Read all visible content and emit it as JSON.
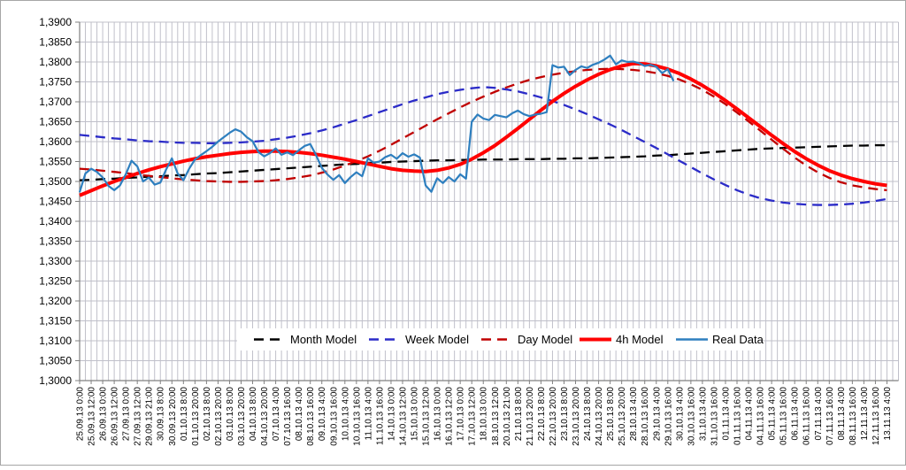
{
  "chart_data": {
    "type": "line",
    "title": "",
    "grid": true,
    "y_axis": {
      "min": 1.3,
      "max": 1.39,
      "step": 0.005,
      "tick_labels": [
        "1,3900",
        "1,3850",
        "1,3800",
        "1,3750",
        "1,3700",
        "1,3650",
        "1,3600",
        "1,3550",
        "1,3500",
        "1,3450",
        "1,3400",
        "1,3350",
        "1,3300",
        "1,3250",
        "1,3200",
        "1,3150",
        "1,3100",
        "1,3050",
        "1,3000"
      ]
    },
    "x_axis": {
      "labels": [
        "25.09.13 0:00",
        "25.09.13 12:00",
        "26.09.13 0:00",
        "26.09.13 12:00",
        "27.09.13 0:00",
        "27.09.13 12:00",
        "29.09.13 21:00",
        "30.09.13 8:00",
        "30.09.13 20:00",
        "01.10.13 8:00",
        "01.10.13 20:00",
        "02.10.13 8:00",
        "02.10.13 20:00",
        "03.10.13 8:00",
        "03.10.13 20:00",
        "04.10.13 8:00",
        "04.10.13 20:00",
        "07.10.13 4:00",
        "07.10.13 16:00",
        "08.10.13 4:00",
        "08.10.13 16:00",
        "09.10.13 4:00",
        "09.10.13 16:00",
        "10.10.13 4:00",
        "10.10.13 16:00",
        "11.10.13 4:00",
        "11.10.13 16:00",
        "14.10.13 0:00",
        "14.10.13 12:00",
        "15.10.13 0:00",
        "15.10.13 12:00",
        "16.10.13 0:00",
        "16.10.13 12:00",
        "17.10.13 0:00",
        "17.10.13 12:00",
        "18.10.13 0:00",
        "18.10.13 12:00",
        "20.10.13 21:00",
        "21.10.13 8:00",
        "21.10.13 20:00",
        "22.10.13 8:00",
        "22.10.13 20:00",
        "23.10.13 8:00",
        "23.10.13 20:00",
        "24.10.13 8:00",
        "24.10.13 20:00",
        "25.10.13 8:00",
        "25.10.13 20:00",
        "28.10.13 4:00",
        "28.10.13 16:00",
        "29.10.13 4:00",
        "29.10.13 16:00",
        "30.10.13 4:00",
        "30.10.13 16:00",
        "31.10.13 4:00",
        "31.10.13 16:00",
        "01.11.13 4:00",
        "01.11.13 16:00",
        "04.11.13 4:00",
        "04.11.13 16:00",
        "05.11.13 4:00",
        "05.11.13 16:00",
        "06.11.13 4:00",
        "06.11.13 16:00",
        "07.11.13 4:00",
        "07.11.13 16:00",
        "08.11.13 4:00",
        "08.11.13 16:00",
        "12.11.13 4:00",
        "12.11.13 16:00",
        "13.11.13 4:00"
      ],
      "minor_gridlines_per_label": 2
    },
    "legend": {
      "position": "bottom-center-overlay",
      "items": [
        "Month Model",
        "Week Model",
        "Day Model",
        "4h Model",
        "Real Data"
      ]
    },
    "series": [
      {
        "name": "Month Model",
        "color": "#000000",
        "style": "dashed",
        "width": 2.3,
        "x_start": 0,
        "x_step": 1,
        "values": [
          1.3503,
          1.3504,
          1.3506,
          1.3507,
          1.3509,
          1.351,
          1.3512,
          1.3513,
          1.3515,
          1.3516,
          1.3518,
          1.352,
          1.3521,
          1.3523,
          1.3525,
          1.3527,
          1.3529,
          1.3531,
          1.3533,
          1.3535,
          1.3537,
          1.3539,
          1.3541,
          1.3543,
          1.3544,
          1.3546,
          1.3547,
          1.3549,
          1.355,
          1.3551,
          1.3552,
          1.3553,
          1.3553,
          1.3554,
          1.3554,
          1.3555,
          1.3555,
          1.3555,
          1.3556,
          1.3556,
          1.3556,
          1.3557,
          1.3557,
          1.3558,
          1.3558,
          1.3559,
          1.356,
          1.3561,
          1.3562,
          1.3563,
          1.3565,
          1.3566,
          1.3568,
          1.357,
          1.3572,
          1.3574,
          1.3576,
          1.3578,
          1.358,
          1.3582,
          1.3583,
          1.3584,
          1.3585,
          1.3586,
          1.3587,
          1.3588,
          1.3589,
          1.359,
          1.359,
          1.3591,
          1.3591
        ]
      },
      {
        "name": "Week Model",
        "color": "#2B2BC8",
        "style": "dashed",
        "width": 2.3,
        "x_start": 0,
        "x_step": 1,
        "values": [
          1.3617,
          1.3614,
          1.3611,
          1.3608,
          1.3606,
          1.3603,
          1.3601,
          1.36,
          1.3598,
          1.3597,
          1.3597,
          1.3596,
          1.3596,
          1.3597,
          1.3598,
          1.36,
          1.3602,
          1.3606,
          1.361,
          1.3615,
          1.3621,
          1.3628,
          1.3636,
          1.3645,
          1.3654,
          1.3664,
          1.3674,
          1.3684,
          1.3694,
          1.3703,
          1.3711,
          1.3719,
          1.3725,
          1.373,
          1.3734,
          1.3737,
          1.3735,
          1.3731,
          1.3726,
          1.3719,
          1.3711,
          1.3702,
          1.3692,
          1.3681,
          1.3669,
          1.3656,
          1.3643,
          1.3629,
          1.3614,
          1.3599,
          1.3584,
          1.3568,
          1.3552,
          1.3536,
          1.352,
          1.3505,
          1.3491,
          1.3478,
          1.3467,
          1.3458,
          1.3452,
          1.3447,
          1.3444,
          1.3442,
          1.3441,
          1.3441,
          1.3442,
          1.3444,
          1.3447,
          1.3451,
          1.3456
        ]
      },
      {
        "name": "Day Model",
        "color": "#C00000",
        "style": "dashed",
        "width": 2.3,
        "x_start": 0,
        "x_step": 1,
        "values": [
          1.3532,
          1.353,
          1.3527,
          1.3524,
          1.3521,
          1.3517,
          1.3514,
          1.3511,
          1.3508,
          1.3505,
          1.3503,
          1.3501,
          1.35,
          1.3499,
          1.3499,
          1.35,
          1.3501,
          1.3503,
          1.3506,
          1.351,
          1.3515,
          1.3522,
          1.353,
          1.354,
          1.3551,
          1.3563,
          1.3577,
          1.3592,
          1.3608,
          1.3624,
          1.364,
          1.3656,
          1.3671,
          1.3686,
          1.37,
          1.3713,
          1.3725,
          1.3736,
          1.3746,
          1.3755,
          1.3762,
          1.3768,
          1.3773,
          1.3777,
          1.378,
          1.3782,
          1.3783,
          1.3782,
          1.378,
          1.3777,
          1.3772,
          1.3765,
          1.3756,
          1.3744,
          1.373,
          1.3713,
          1.3694,
          1.3673,
          1.3651,
          1.3628,
          1.3605,
          1.3582,
          1.356,
          1.354,
          1.3523,
          1.3509,
          1.3498,
          1.349,
          1.3485,
          1.3481,
          1.3478
        ]
      },
      {
        "name": "4h Model",
        "color": "#FF0000",
        "style": "solid",
        "width": 4,
        "x_start": 0,
        "x_step": 1,
        "values": [
          1.3465,
          1.3477,
          1.3489,
          1.35,
          1.351,
          1.352,
          1.3529,
          1.3537,
          1.3544,
          1.3551,
          1.3557,
          1.3562,
          1.3566,
          1.357,
          1.3573,
          1.3575,
          1.3576,
          1.3576,
          1.3575,
          1.3573,
          1.357,
          1.3566,
          1.3561,
          1.3556,
          1.355,
          1.3544,
          1.3538,
          1.3532,
          1.3528,
          1.3526,
          1.3525,
          1.3528,
          1.3534,
          1.3543,
          1.3556,
          1.3572,
          1.359,
          1.3611,
          1.3633,
          1.3656,
          1.3679,
          1.3701,
          1.3721,
          1.3739,
          1.3755,
          1.3769,
          1.3781,
          1.379,
          1.3796,
          1.3795,
          1.379,
          1.3782,
          1.3771,
          1.3757,
          1.3741,
          1.3723,
          1.3703,
          1.3682,
          1.366,
          1.3638,
          1.3616,
          1.3595,
          1.3575,
          1.3557,
          1.3541,
          1.3527,
          1.3516,
          1.3507,
          1.35,
          1.3494,
          1.349
        ]
      },
      {
        "name": "Real Data",
        "color": "#2E7FBF",
        "style": "solid",
        "width": 2.2,
        "x_start": 0,
        "x_step": 0.5,
        "values": [
          1.3473,
          1.352,
          1.3532,
          1.3524,
          1.351,
          1.3489,
          1.3478,
          1.349,
          1.3518,
          1.3552,
          1.3538,
          1.35,
          1.351,
          1.3492,
          1.3497,
          1.353,
          1.3558,
          1.352,
          1.3503,
          1.3532,
          1.3555,
          1.3566,
          1.3576,
          1.3587,
          1.36,
          1.3611,
          1.3622,
          1.3631,
          1.3625,
          1.3611,
          1.3601,
          1.3574,
          1.3563,
          1.3571,
          1.3583,
          1.3567,
          1.3573,
          1.3566,
          1.3578,
          1.3589,
          1.3594,
          1.3566,
          1.3534,
          1.3517,
          1.3504,
          1.3516,
          1.3496,
          1.3511,
          1.3523,
          1.3513,
          1.3558,
          1.3547,
          1.355,
          1.3561,
          1.3567,
          1.3557,
          1.3571,
          1.3562,
          1.3568,
          1.356,
          1.349,
          1.3474,
          1.3508,
          1.3496,
          1.3511,
          1.35,
          1.3518,
          1.3507,
          1.365,
          1.3668,
          1.3658,
          1.3654,
          1.3667,
          1.3664,
          1.3661,
          1.3671,
          1.3678,
          1.3669,
          1.3664,
          1.3668,
          1.367,
          1.3674,
          1.3792,
          1.3786,
          1.3788,
          1.3767,
          1.378,
          1.3789,
          1.3785,
          1.3793,
          1.3798,
          1.3806,
          1.3816,
          1.3794,
          1.3804,
          1.38,
          1.3801,
          1.3797,
          1.379,
          1.3793,
          1.3788,
          1.3772,
          1.3782,
          1.3752
        ]
      }
    ],
    "colors": {
      "gridline": "#C0C0CA",
      "axis": "#808080",
      "chart_border": "#A6A6A6",
      "background": "#FFFFFF",
      "legend_background": "#FFFFFF"
    }
  }
}
